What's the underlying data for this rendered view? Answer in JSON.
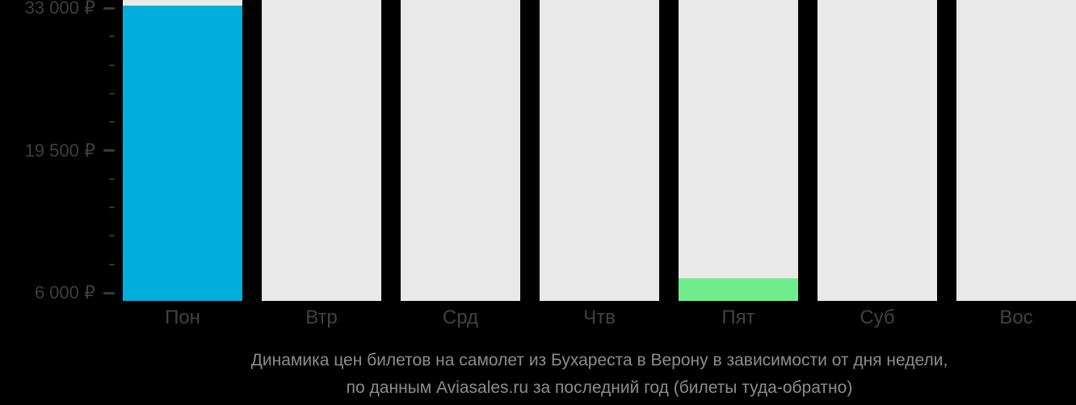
{
  "chart_data": {
    "type": "bar",
    "title": "",
    "categories": [
      "Пон",
      "Втр",
      "Срд",
      "Чтв",
      "Пят",
      "Суб",
      "Вос"
    ],
    "values": [
      33200,
      null,
      null,
      null,
      7400,
      null,
      null
    ],
    "point_colors": [
      "#00AEDB",
      null,
      null,
      null,
      "#6FEC8C",
      null,
      null
    ],
    "placeholder_bars_full_height": true,
    "y_axis": {
      "unit": "₽",
      "top_value": 33000,
      "bottom_value": 6000,
      "minor_step": 2700,
      "ticks": [
        {
          "value": 33000,
          "label": "33 000 ₽"
        },
        {
          "value": 30300,
          "label": ""
        },
        {
          "value": 27600,
          "label": ""
        },
        {
          "value": 24900,
          "label": ""
        },
        {
          "value": 22200,
          "label": ""
        },
        {
          "value": 19500,
          "label": "19 500 ₽"
        },
        {
          "value": 16800,
          "label": ""
        },
        {
          "value": 14100,
          "label": ""
        },
        {
          "value": 11400,
          "label": ""
        },
        {
          "value": 8700,
          "label": ""
        },
        {
          "value": 6000,
          "label": "6 000 ₽"
        }
      ]
    },
    "grid": false,
    "legend_position": "none"
  },
  "caption": {
    "line1": "Динамика цен билетов на самолет из Бухареста в Верону в зависимости от дня недели,",
    "line2": "по данным Aviasales.ru за последний год (билеты туда-обратно)"
  },
  "colors": {
    "background": "#000000",
    "bar_placeholder": "#E9E9E9",
    "bar_max": "#00AEDB",
    "bar_min": "#6FEC8C",
    "axis_label_text": "#3E3E3E",
    "day_label_text": "#424242",
    "tick_major": "#3A3A3A",
    "tick_minor": "#333333",
    "caption_text": "#8C8C8C"
  }
}
